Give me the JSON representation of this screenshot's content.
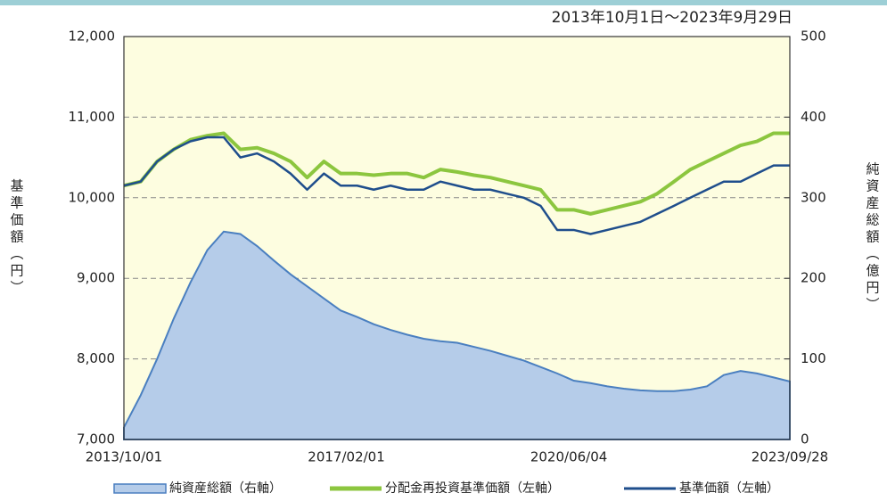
{
  "chart_data": {
    "type": "line",
    "subtitle": "2013年10月1日～2023年9月29日",
    "ylabel": "基準価額（円）",
    "y2label": "純資産総額（億円）",
    "x": [
      "2013/10/01",
      "2014/01/01",
      "2014/04/01",
      "2014/07/01",
      "2014/10/01",
      "2015/01/01",
      "2015/04/01",
      "2015/07/01",
      "2015/10/01",
      "2016/01/01",
      "2016/04/01",
      "2016/07/01",
      "2016/10/01",
      "2017/01/01",
      "2017/04/01",
      "2017/07/01",
      "2017/10/01",
      "2018/01/01",
      "2018/04/01",
      "2018/07/01",
      "2018/10/01",
      "2019/01/01",
      "2019/04/01",
      "2019/07/01",
      "2019/10/01",
      "2020/01/01",
      "2020/04/01",
      "2020/07/01",
      "2020/10/01",
      "2021/01/01",
      "2021/04/01",
      "2021/07/01",
      "2021/10/01",
      "2022/01/01",
      "2022/04/01",
      "2022/07/01",
      "2022/10/01",
      "2023/01/01",
      "2023/04/01",
      "2023/07/01",
      "2023/09/28"
    ],
    "series": [
      {
        "name": "純資産総額（右軸）",
        "color": "#4a7fc0",
        "fill": "#b5cce9",
        "axis": "y2",
        "kind": "area",
        "values": [
          15,
          55,
          100,
          150,
          195,
          235,
          258,
          255,
          240,
          222,
          205,
          190,
          175,
          160,
          152,
          143,
          136,
          130,
          125,
          122,
          120,
          115,
          110,
          104,
          98,
          90,
          82,
          73,
          70,
          66,
          63,
          61,
          60,
          60,
          62,
          66,
          80,
          85,
          82,
          77,
          72
        ]
      },
      {
        "name": "分配金再投資基準価額（左軸）",
        "color": "#8cc63f",
        "values": [
          10150,
          10200,
          10450,
          10600,
          10720,
          10770,
          10800,
          10600,
          10620,
          10550,
          10450,
          10250,
          10450,
          10300,
          10300,
          10280,
          10300,
          10300,
          10250,
          10350,
          10320,
          10280,
          10250,
          10200,
          10150,
          10100,
          9850,
          9850,
          9800,
          9850,
          9900,
          9950,
          10050,
          10200,
          10350,
          10450,
          10550,
          10650,
          10700,
          10800,
          10800
        ]
      },
      {
        "name": "基準価額（左軸）",
        "color": "#1f4e8c",
        "values": [
          10150,
          10200,
          10450,
          10600,
          10700,
          10750,
          10750,
          10500,
          10550,
          10450,
          10300,
          10100,
          10300,
          10150,
          10150,
          10100,
          10150,
          10100,
          10100,
          10200,
          10150,
          10100,
          10100,
          10050,
          10000,
          9900,
          9600,
          9600,
          9550,
          9600,
          9650,
          9700,
          9800,
          9900,
          10000,
          10100,
          10200,
          10200,
          10300,
          10400,
          10400
        ]
      }
    ],
    "xticks": [
      "2013/10/01",
      "2017/02/01",
      "2020/06/04",
      "2023/09/28"
    ],
    "xlim": [
      "2013/10/01",
      "2023/09/28"
    ],
    "ylim": [
      7000,
      12000
    ],
    "yticks": [
      {
        "value": 7000,
        "label": "7,000"
      },
      {
        "value": 8000,
        "label": "8,000"
      },
      {
        "value": 9000,
        "label": "9,000"
      },
      {
        "value": 10000,
        "label": "10,000"
      },
      {
        "value": 11000,
        "label": "11,000"
      },
      {
        "value": 12000,
        "label": "12,000"
      }
    ],
    "y2lim": [
      0,
      500
    ],
    "y2ticks": [
      0,
      100,
      200,
      300,
      400,
      500
    ],
    "grid": true,
    "legend": "bottom"
  }
}
